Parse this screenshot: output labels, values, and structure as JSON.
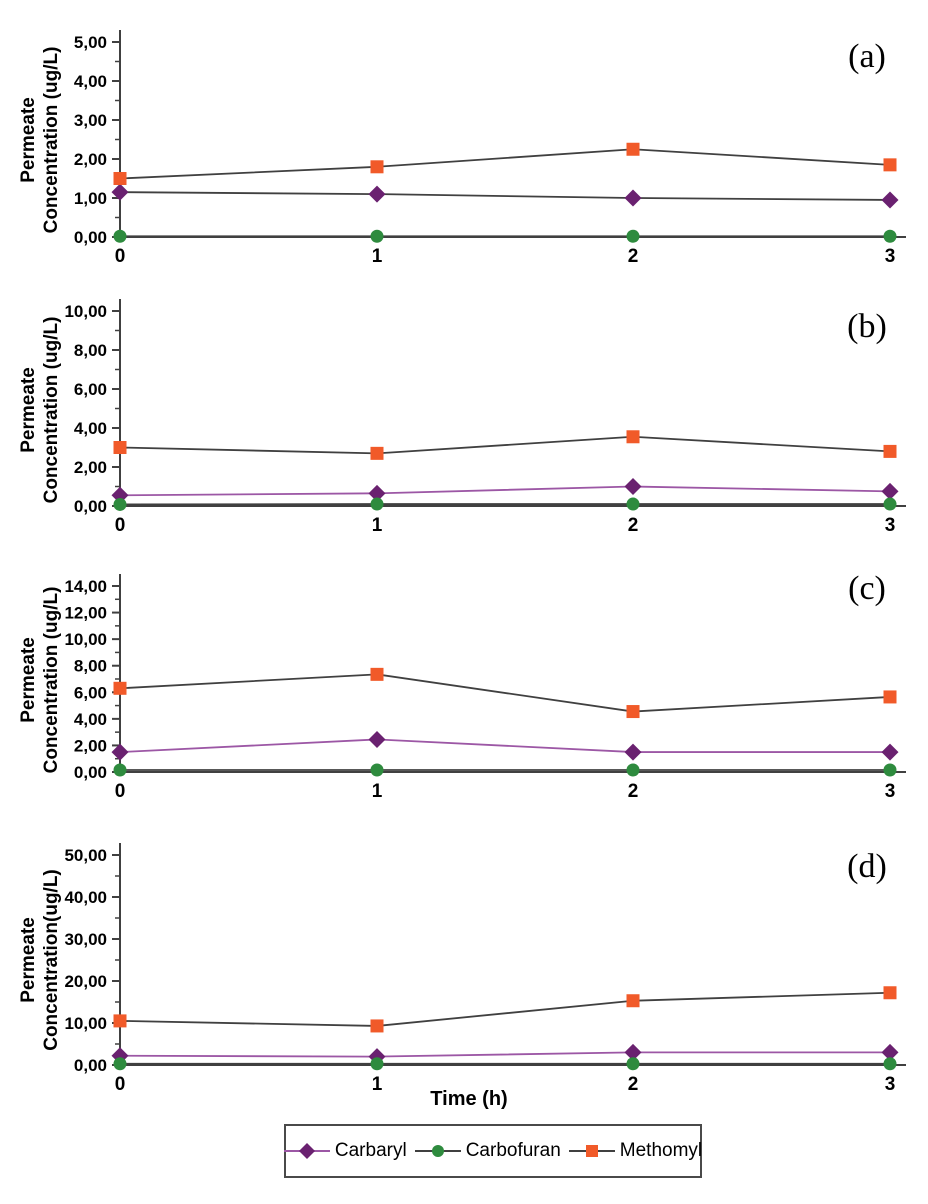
{
  "figure": {
    "xlabel": "Time (h)",
    "x_tick_labels": [
      "0",
      "1",
      "2",
      "3"
    ],
    "background_color": "#ffffff",
    "axis_color": "#404040",
    "text_color": "#000000"
  },
  "legend": {
    "position": "bottom-center",
    "border": true,
    "items": [
      {
        "label": "Carbaryl",
        "marker": "diamond",
        "marker_color": "#6A2170",
        "line_color": "#9C57A5"
      },
      {
        "label": "Carbofuran",
        "marker": "circle",
        "marker_color": "#2E8B3E",
        "line_color": "#404040"
      },
      {
        "label": "Methomyl",
        "marker": "square",
        "marker_color": "#F15A29",
        "line_color": "#404040"
      }
    ]
  },
  "chart_data": [
    {
      "type": "line",
      "panel": "(a)",
      "ylabel": "Permeate Concentration (ug/L)",
      "ylabel_line1": "Permeate",
      "ylabel_line2": "Concentration (ug/L)",
      "xlabel": "Time (h)",
      "x": [
        0,
        1,
        2,
        3
      ],
      "ylim": [
        0,
        5
      ],
      "ytick_step": 1,
      "ytick_labels": [
        "0,00",
        "1,00",
        "2,00",
        "3,00",
        "4,00",
        "5,00"
      ],
      "grid": false,
      "series": [
        {
          "name": "Carbaryl",
          "values": [
            1.15,
            1.1,
            1.0,
            0.95
          ],
          "marker": "diamond",
          "marker_color": "#6A2170",
          "line_color": "#404040"
        },
        {
          "name": "Carbofuran",
          "values": [
            0.02,
            0.02,
            0.02,
            0.02
          ],
          "marker": "circle",
          "marker_color": "#2E8B3E",
          "line_color": "#404040"
        },
        {
          "name": "Methomyl",
          "values": [
            1.5,
            1.8,
            2.25,
            1.85
          ],
          "marker": "square",
          "marker_color": "#F15A29",
          "line_color": "#404040"
        }
      ]
    },
    {
      "type": "line",
      "panel": "(b)",
      "ylabel": "Permeate Concentration (ug/L)",
      "ylabel_line1": "Permeate",
      "ylabel_line2": "Concentration (ug/L)",
      "xlabel": "Time (h)",
      "x": [
        0,
        1,
        2,
        3
      ],
      "ylim": [
        0,
        10
      ],
      "ytick_step": 2,
      "ytick_labels": [
        "0,00",
        "2,00",
        "4,00",
        "6,00",
        "8,00",
        "10,00"
      ],
      "grid": false,
      "series": [
        {
          "name": "Carbaryl",
          "values": [
            0.55,
            0.65,
            1.0,
            0.75
          ],
          "marker": "diamond",
          "marker_color": "#6A2170",
          "line_color": "#9C57A5"
        },
        {
          "name": "Carbofuran",
          "values": [
            0.08,
            0.1,
            0.1,
            0.1
          ],
          "marker": "circle",
          "marker_color": "#2E8B3E",
          "line_color": "#404040"
        },
        {
          "name": "Methomyl",
          "values": [
            3.0,
            2.7,
            3.55,
            2.8
          ],
          "marker": "square",
          "marker_color": "#F15A29",
          "line_color": "#404040"
        }
      ]
    },
    {
      "type": "line",
      "panel": "(c)",
      "ylabel": "Permeate Concentration (ug/L)",
      "ylabel_line1": "Permeate",
      "ylabel_line2": "Concentration (ug/L)",
      "xlabel": "Time (h)",
      "x": [
        0,
        1,
        2,
        3
      ],
      "ylim": [
        0,
        14
      ],
      "ytick_step": 2,
      "ytick_labels": [
        "0,00",
        "2,00",
        "4,00",
        "6,00",
        "8,00",
        "10,00",
        "12,00",
        "14,00"
      ],
      "grid": false,
      "series": [
        {
          "name": "Carbaryl",
          "values": [
            1.5,
            2.45,
            1.5,
            1.5
          ],
          "marker": "diamond",
          "marker_color": "#6A2170",
          "line_color": "#9C57A5"
        },
        {
          "name": "Carbofuran",
          "values": [
            0.15,
            0.15,
            0.15,
            0.15
          ],
          "marker": "circle",
          "marker_color": "#2E8B3E",
          "line_color": "#404040"
        },
        {
          "name": "Methomyl",
          "values": [
            6.3,
            7.35,
            4.55,
            5.65
          ],
          "marker": "square",
          "marker_color": "#F15A29",
          "line_color": "#404040"
        }
      ]
    },
    {
      "type": "line",
      "panel": "(d)",
      "ylabel": "Permeate Concentration(ug/L)",
      "ylabel_line1": "Permeate",
      "ylabel_line2": "Concentration(ug/L)",
      "xlabel": "Time (h)",
      "x": [
        0,
        1,
        2,
        3
      ],
      "ylim": [
        0,
        50
      ],
      "ytick_step": 10,
      "ytick_labels": [
        "0,00",
        "10,00",
        "20,00",
        "30,00",
        "40,00",
        "50,00"
      ],
      "grid": false,
      "series": [
        {
          "name": "Carbaryl",
          "values": [
            2.2,
            2.0,
            3.0,
            3.0
          ],
          "marker": "diamond",
          "marker_color": "#6A2170",
          "line_color": "#9C57A5"
        },
        {
          "name": "Carbofuran",
          "values": [
            0.3,
            0.3,
            0.3,
            0.3
          ],
          "marker": "circle",
          "marker_color": "#2E8B3E",
          "line_color": "#404040"
        },
        {
          "name": "Methomyl",
          "values": [
            10.5,
            9.3,
            15.3,
            17.2
          ],
          "marker": "square",
          "marker_color": "#F15A29",
          "line_color": "#404040"
        }
      ]
    }
  ]
}
